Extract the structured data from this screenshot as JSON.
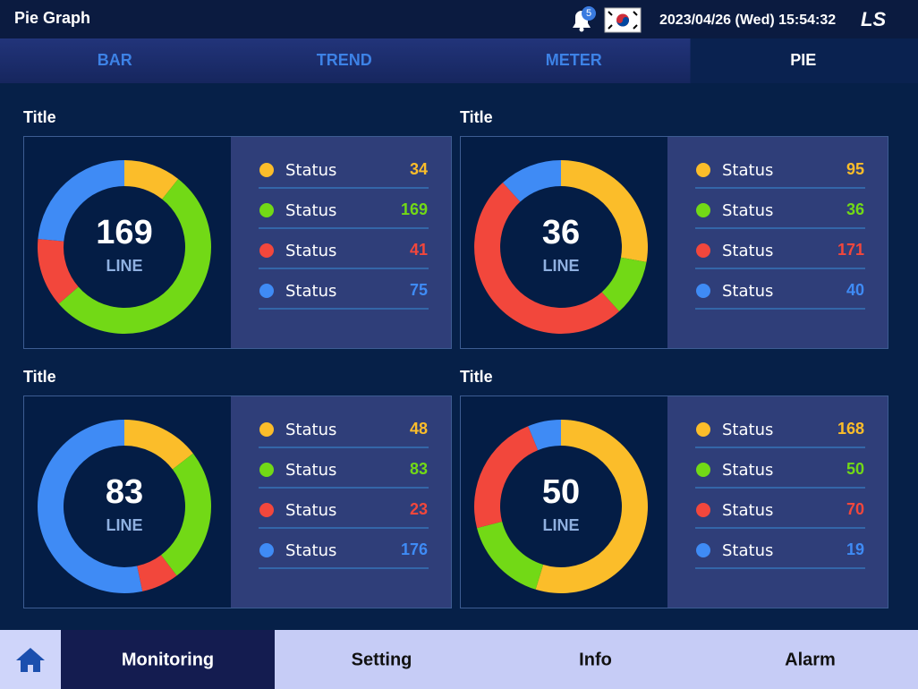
{
  "header": {
    "title": "Pie Graph",
    "badge": "5",
    "datetime": "2023/04/26 (Wed) 15:54:32",
    "logo": "LS"
  },
  "tabs": [
    "BAR",
    "TREND",
    "METER",
    "PIE"
  ],
  "active_tab": 3,
  "footer": {
    "items": [
      "Monitoring",
      "Setting",
      "Info",
      "Alarm"
    ],
    "active": 0
  },
  "chart_data": [
    {
      "type": "pie",
      "title": "Title",
      "center_value": "169",
      "center_label": "LINE",
      "categories": [
        "Status",
        "Status",
        "Status",
        "Status"
      ],
      "values": [
        34,
        169,
        41,
        75
      ],
      "colors": [
        "#fbbd2a",
        "#72d916",
        "#f2473c",
        "#3f8bf5"
      ]
    },
    {
      "type": "pie",
      "title": "Title",
      "center_value": "36",
      "center_label": "LINE",
      "categories": [
        "Status",
        "Status",
        "Status",
        "Status"
      ],
      "values": [
        95,
        36,
        171,
        40
      ],
      "colors": [
        "#fbbd2a",
        "#72d916",
        "#f2473c",
        "#3f8bf5"
      ]
    },
    {
      "type": "pie",
      "title": "Title",
      "center_value": "83",
      "center_label": "LINE",
      "categories": [
        "Status",
        "Status",
        "Status",
        "Status"
      ],
      "values": [
        48,
        83,
        23,
        176
      ],
      "colors": [
        "#fbbd2a",
        "#72d916",
        "#f2473c",
        "#3f8bf5"
      ]
    },
    {
      "type": "pie",
      "title": "Title",
      "center_value": "50",
      "center_label": "LINE",
      "categories": [
        "Status",
        "Status",
        "Status",
        "Status"
      ],
      "values": [
        168,
        50,
        70,
        19
      ],
      "colors": [
        "#fbbd2a",
        "#72d916",
        "#f2473c",
        "#3f8bf5"
      ]
    }
  ]
}
